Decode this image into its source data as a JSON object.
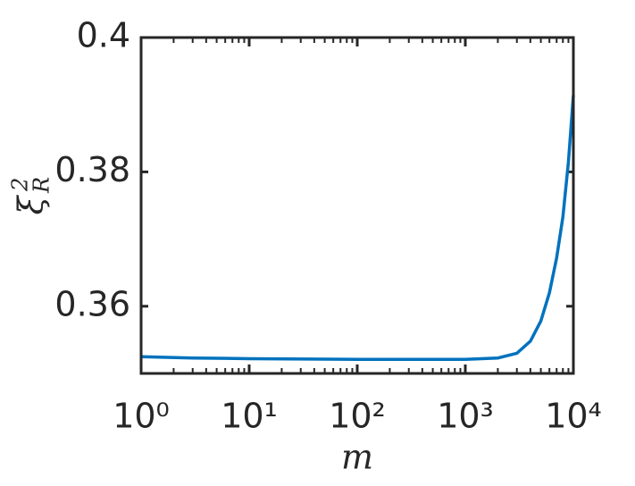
{
  "chart_data": {
    "type": "line",
    "x_label": "m",
    "y_label": {
      "base": "ξ",
      "sub": "R",
      "sup": "2"
    },
    "x": [
      1,
      3,
      10,
      100,
      1000,
      2000,
      3000,
      4000,
      5000,
      6000,
      7000,
      8000,
      9000,
      10000
    ],
    "series": [
      {
        "name": "ξ_R^2",
        "color": "#0072BD",
        "values": [
          0.3525,
          0.3523,
          0.3522,
          0.3521,
          0.3521,
          0.3523,
          0.353,
          0.3548,
          0.3578,
          0.362,
          0.3672,
          0.3733,
          0.3815,
          0.3914
        ]
      }
    ],
    "xscale": "log",
    "xlim": [
      1,
      10000
    ],
    "xticks": [
      {
        "value": 1,
        "label": "10⁰"
      },
      {
        "value": 10,
        "label": "10¹"
      },
      {
        "value": 100,
        "label": "10²"
      },
      {
        "value": 1000,
        "label": "10³"
      },
      {
        "value": 10000,
        "label": "10⁴"
      }
    ],
    "ylim": [
      0.35,
      0.4
    ],
    "yticks": [
      0.36,
      0.38,
      0.4
    ],
    "grid": false
  }
}
